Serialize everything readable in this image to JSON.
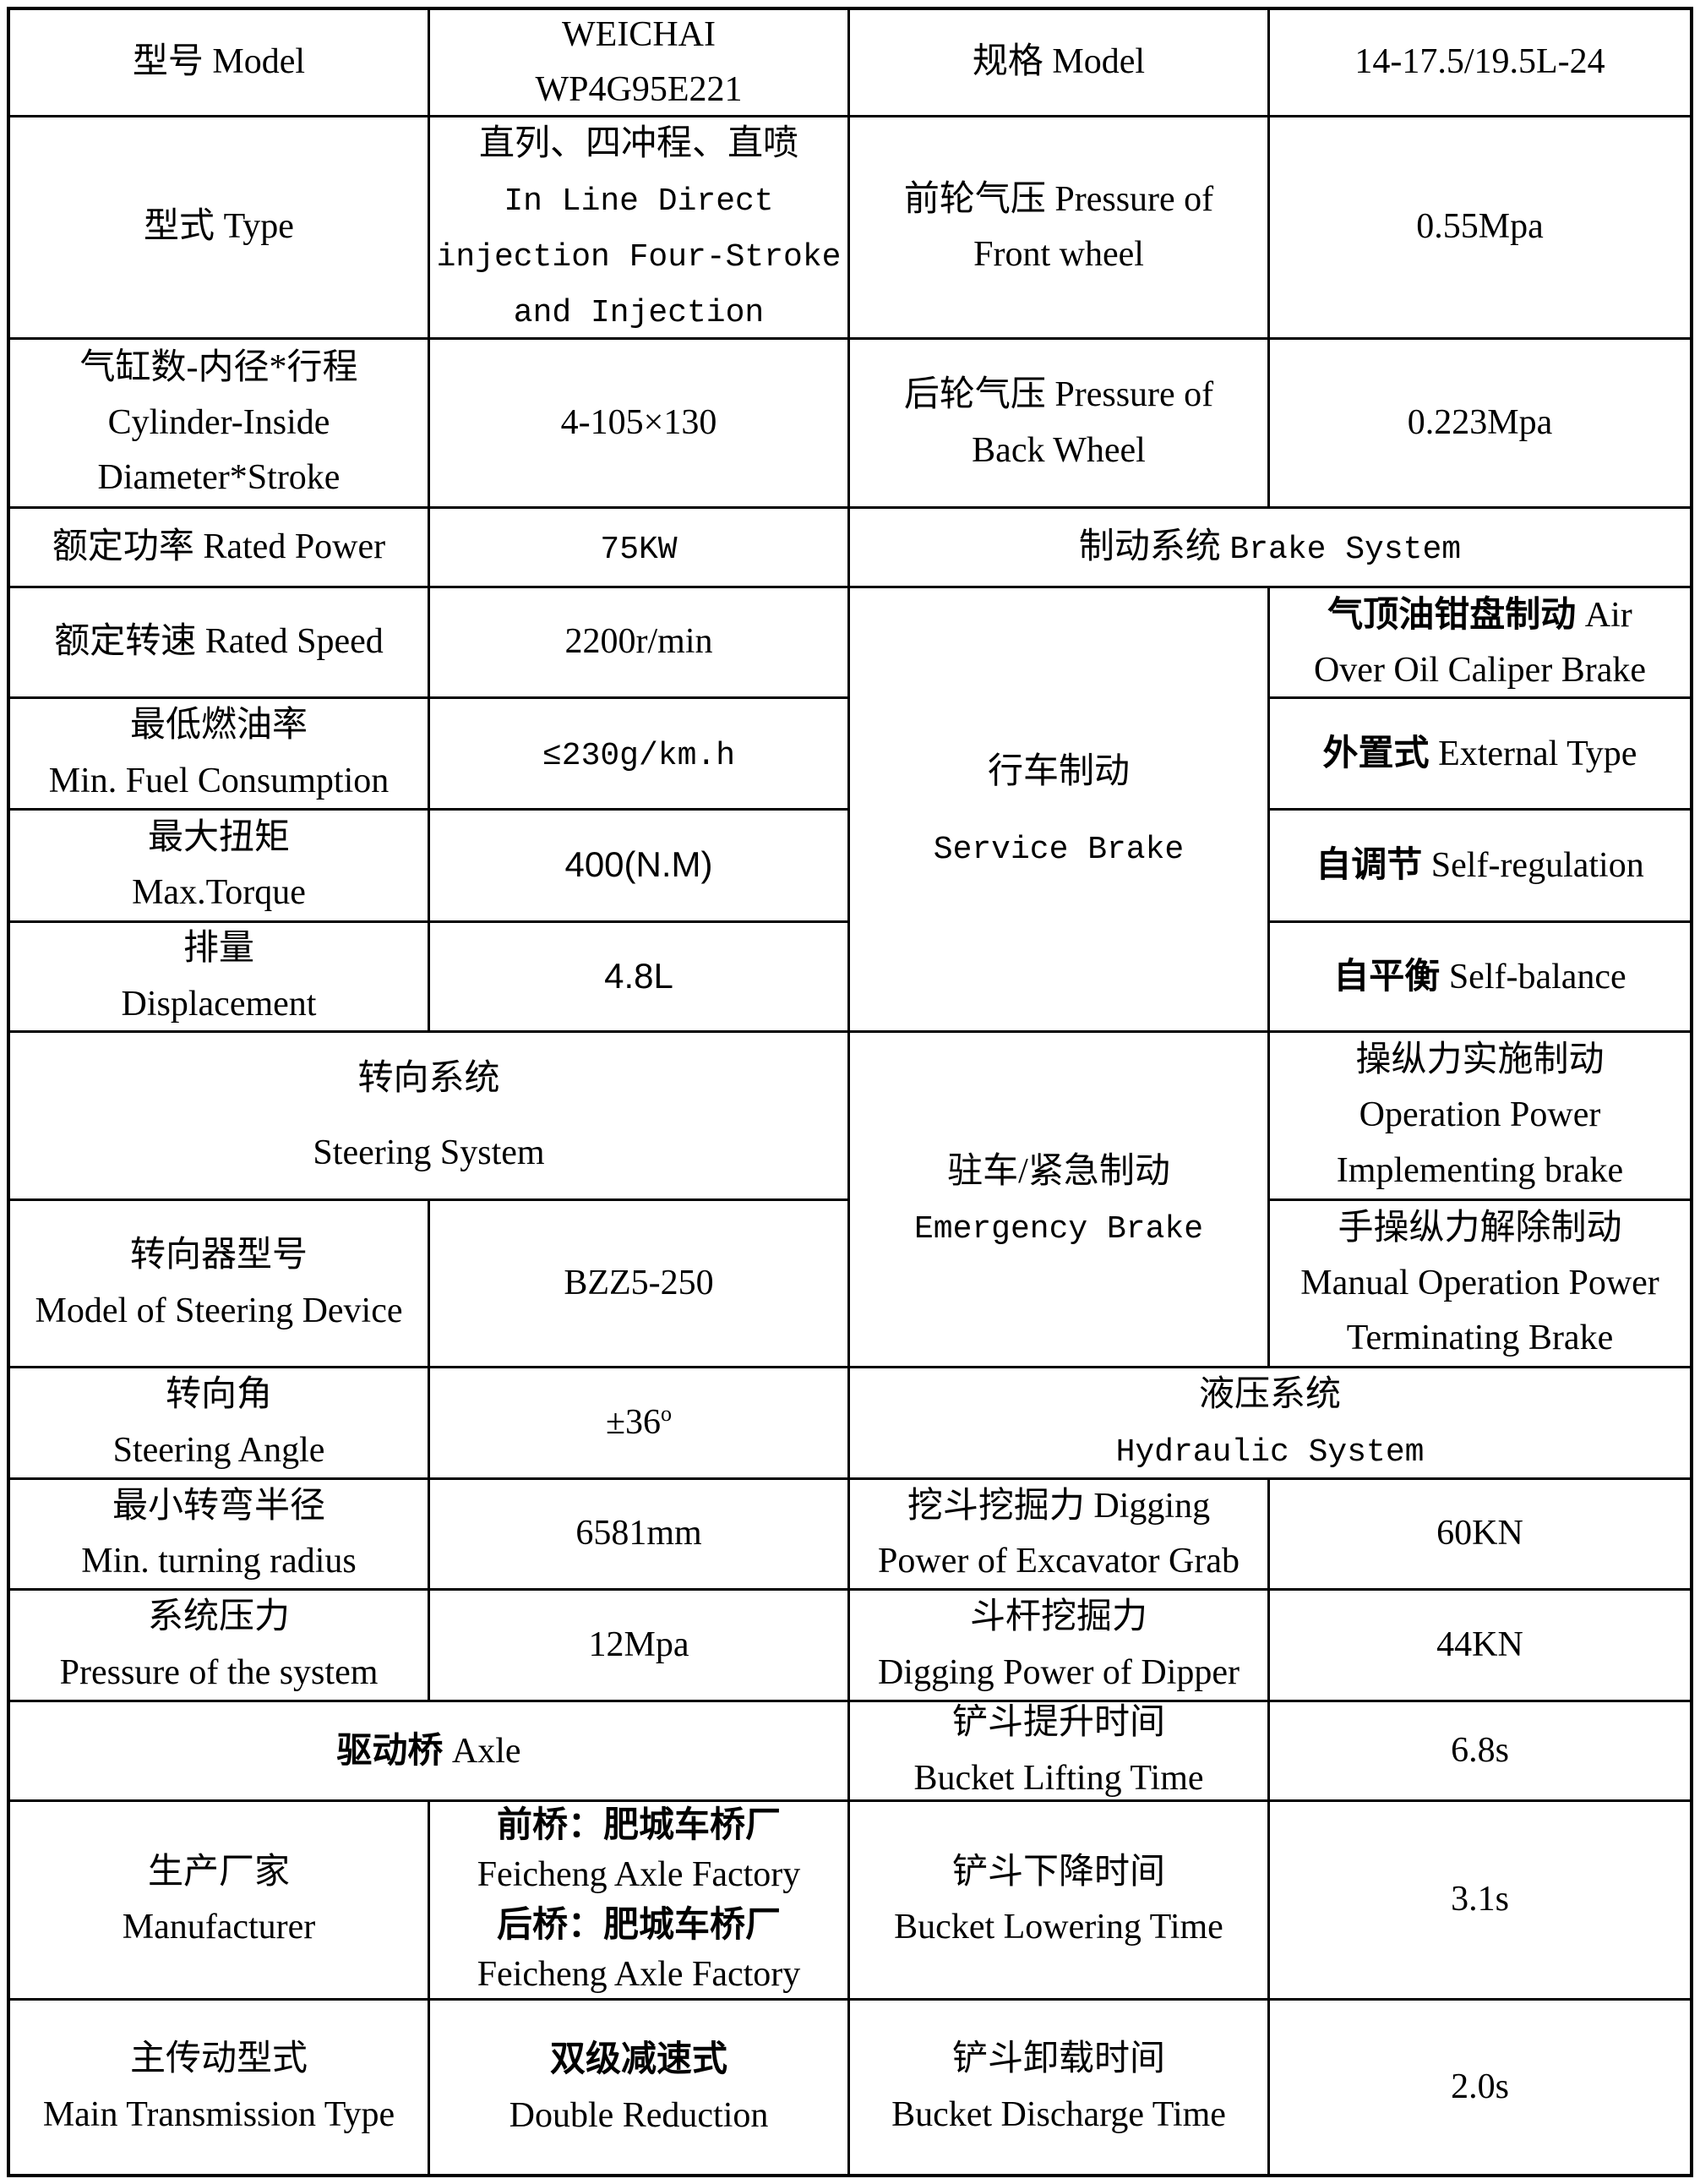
{
  "page": {
    "background": "#ffffff",
    "grid_color": "#000000",
    "text_color": "#000000",
    "rows": 16,
    "columns": 4
  },
  "cells": {
    "r1c1": {
      "zh": "型号",
      "en": "Model"
    },
    "r1c2": {
      "l1": "WEICHAI",
      "l2": "WP4G95E221"
    },
    "r1c3": {
      "zh": "规格",
      "en": "Model"
    },
    "r1c4": {
      "value": "14-17.5/19.5L-24"
    },
    "r2c1": {
      "zh": "型式",
      "en": "Type"
    },
    "r2c2": {
      "zh": "直列、四冲程、直喷",
      "en1": "In Line Direct",
      "en2": "injection Four-Stroke",
      "en3": "and Injection"
    },
    "r2c3": {
      "zh": "前轮气压",
      "en1": "Pressure of",
      "en2": "Front wheel"
    },
    "r2c4": {
      "value": "0.55Mpa"
    },
    "r3c1": {
      "zh": "气缸数-内径*行程",
      "en1": "Cylinder-Inside",
      "en2": "Diameter*Stroke"
    },
    "r3c2": {
      "value": "4-105×130"
    },
    "r3c3": {
      "zh": "后轮气压",
      "en1": "Pressure of",
      "en2": "Back Wheel"
    },
    "r3c4": {
      "value": "0.223Mpa"
    },
    "r4c1": {
      "zh": "额定功率",
      "en": "Rated Power"
    },
    "r4c2": {
      "value": "75KW"
    },
    "r4c34": {
      "zh": "制动系统",
      "en": "Brake System"
    },
    "r5c1": {
      "zh": "额定转速",
      "en": "Rated Speed"
    },
    "r5c2": {
      "value": "2200r/min"
    },
    "r5c3": {
      "zh": "行车制动",
      "en": "Service Brake"
    },
    "r5c4": {
      "zh": "气顶油钳盘制动",
      "en1": "Air",
      "en2": "Over Oil Caliper Brake"
    },
    "r6c1": {
      "zh": "最低燃油率",
      "en": "Min. Fuel Consumption"
    },
    "r6c2": {
      "value": "≤230g/km.h"
    },
    "r6c4": {
      "zh": "外置式",
      "en": "External Type"
    },
    "r7c1": {
      "zh": "最大扭矩",
      "en": "Max.Torque"
    },
    "r7c2": {
      "value": "400(N.M)"
    },
    "r7c4": {
      "zh": "自调节",
      "en": "Self-regulation"
    },
    "r8c1": {
      "zh": "排量",
      "en": "Displacement"
    },
    "r8c2": {
      "value": "4.8L"
    },
    "r8c4": {
      "zh": "自平衡",
      "en": "Self-balance"
    },
    "r9c12": {
      "zh": "转向系统",
      "en": "Steering System"
    },
    "r9c3": {
      "zh": "驻车/紧急制动",
      "en": "Emergency Brake"
    },
    "r9c4": {
      "zh": "操纵力实施制动",
      "en1": "Operation Power",
      "en2": "Implementing brake"
    },
    "r10c1": {
      "zh": "转向器型号",
      "en": "Model of Steering Device"
    },
    "r10c2": {
      "value": "BZZ5-250"
    },
    "r10c4": {
      "zh": "手操纵力解除制动",
      "en1": "Manual Operation Power",
      "en2": "Terminating Brake"
    },
    "r11c1": {
      "zh": "转向角",
      "en": "Steering Angle"
    },
    "r11c2": {
      "value": "±36",
      "sup": "o"
    },
    "r11c34": {
      "zh": "液压系统",
      "en": "Hydraulic System"
    },
    "r12c1": {
      "zh": "最小转弯半径",
      "en": "Min. turning radius"
    },
    "r12c2": {
      "value": "6581mm"
    },
    "r12c3": {
      "zh": "挖斗挖掘力",
      "en1": "Digging",
      "en2": "Power of Excavator Grab"
    },
    "r12c4": {
      "value": "60KN"
    },
    "r13c1": {
      "zh": "系统压力",
      "en": "Pressure of the system"
    },
    "r13c2": {
      "value": "12Mpa"
    },
    "r13c3": {
      "zh": "斗杆挖掘力",
      "en": "Digging Power of Dipper"
    },
    "r13c4": {
      "value": "44KN"
    },
    "r14c12": {
      "zh": "驱动桥",
      "en": "Axle"
    },
    "r14c3": {
      "zh": "铲斗提升时间",
      "en": "Bucket Lifting Time"
    },
    "r14c4": {
      "value": "6.8s"
    },
    "r15c1": {
      "zh": "生产厂家",
      "en": "Manufacturer"
    },
    "r15c2": {
      "zh1": "前桥：肥城车桥厂",
      "en1": "Feicheng Axle Factory",
      "zh2": "后桥：肥城车桥厂",
      "en2": "Feicheng Axle Factory"
    },
    "r15c3": {
      "zh": "铲斗下降时间",
      "en": "Bucket Lowering Time"
    },
    "r15c4": {
      "value": "3.1s"
    },
    "r16c1": {
      "zh": "主传动型式",
      "en": "Main Transmission Type"
    },
    "r16c2": {
      "zh": "双级减速式",
      "en": "Double Reduction"
    },
    "r16c3": {
      "zh": "铲斗卸载时间",
      "en": "Bucket Discharge Time"
    },
    "r16c4": {
      "value": "2.0s"
    }
  }
}
